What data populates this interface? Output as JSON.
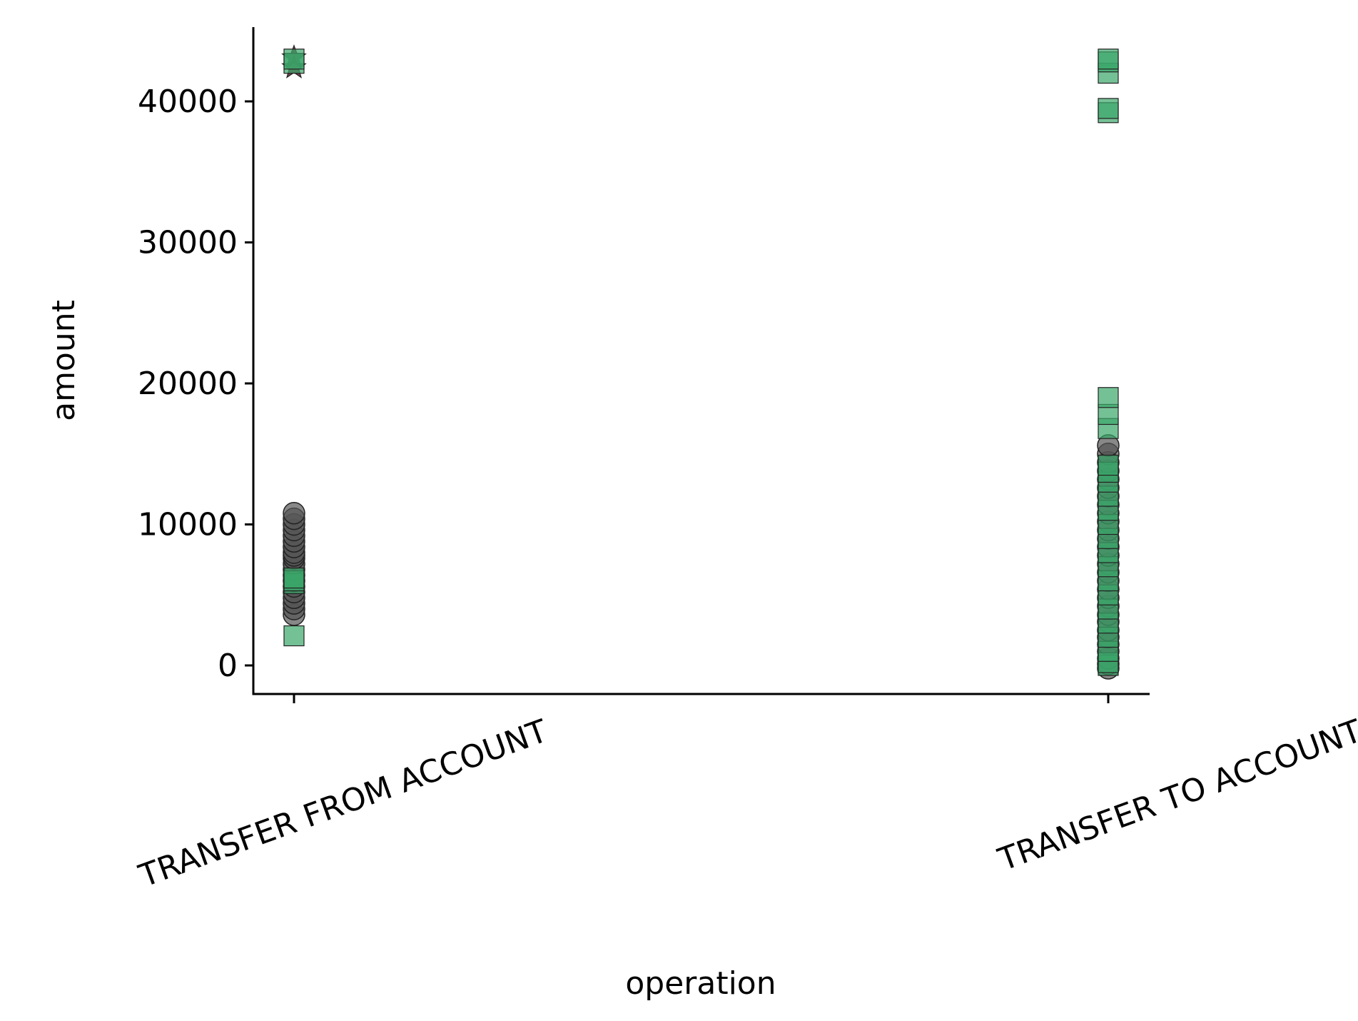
{
  "chart_data": {
    "type": "scatter",
    "title": "",
    "xlabel": "operation",
    "ylabel": "amount",
    "categories": [
      "TRANSFER FROM ACCOUNT",
      "TRANSFER TO ACCOUNT"
    ],
    "ylim": [
      -2100,
      45200
    ],
    "yticks": [
      0,
      10000,
      20000,
      30000,
      40000
    ],
    "grid": false,
    "legend": "none",
    "colors": {
      "circle": "#555555",
      "square": "#3aa66a",
      "star": "#5a1020",
      "edge": "#222222"
    },
    "series": [
      {
        "marker": "circle",
        "points": [
          {
            "category": "TRANSFER FROM ACCOUNT",
            "values": [
              3600,
              4000,
              4400,
              4800,
              5200,
              5600,
              6000,
              6400,
              6800,
              7200,
              7600,
              7800,
              8000,
              8400,
              8800,
              9200,
              9600,
              10000,
              10400,
              10800
            ]
          },
          {
            "category": "TRANSFER TO ACCOUNT",
            "values": [
              -200,
              100,
              500,
              1000,
              1500,
              2000,
              2500,
              3100,
              3600,
              4200,
              4800,
              5400,
              6000,
              6600,
              7200,
              7800,
              8400,
              9000,
              9600,
              10200,
              10800,
              11400,
              12000,
              12600,
              13200,
              13800,
              14400,
              15000,
              15600
            ]
          }
        ]
      },
      {
        "marker": "square",
        "points": [
          {
            "category": "TRANSFER FROM ACCOUNT",
            "values": [
              2100,
              5800,
              6000,
              6200,
              42700,
              43000
            ]
          },
          {
            "category": "TRANSFER TO ACCOUNT",
            "values": [
              0,
              200,
              1000,
              2000,
              3000,
              4000,
              5000,
              6000,
              7000,
              8000,
              9000,
              10000,
              11000,
              12000,
              13000,
              13700,
              14200,
              16800,
              17800,
              19000,
              39200,
              39500,
              42000,
              42800,
              43000
            ]
          }
        ]
      },
      {
        "marker": "star",
        "points": [
          {
            "category": "TRANSFER FROM ACCOUNT",
            "values": [
              42400,
              43100
            ]
          }
        ]
      }
    ]
  }
}
